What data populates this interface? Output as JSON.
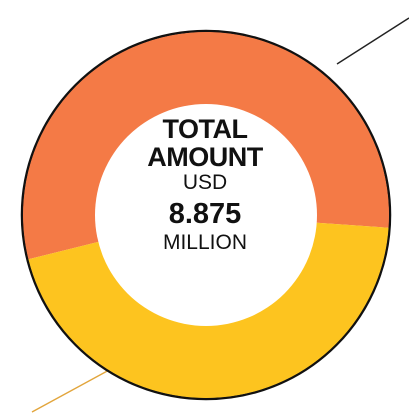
{
  "chart_data": {
    "type": "pie",
    "title": "",
    "slices": [
      {
        "label": "",
        "value": 55,
        "color": "#F47A46"
      },
      {
        "label": "",
        "value": 45,
        "color": "#FDC41F"
      }
    ],
    "center": {
      "line1": "TOTAL",
      "line2": "AMOUNT",
      "currency": "USD",
      "value": "8.875",
      "unit": "MILLION"
    },
    "leader_lines": true
  }
}
